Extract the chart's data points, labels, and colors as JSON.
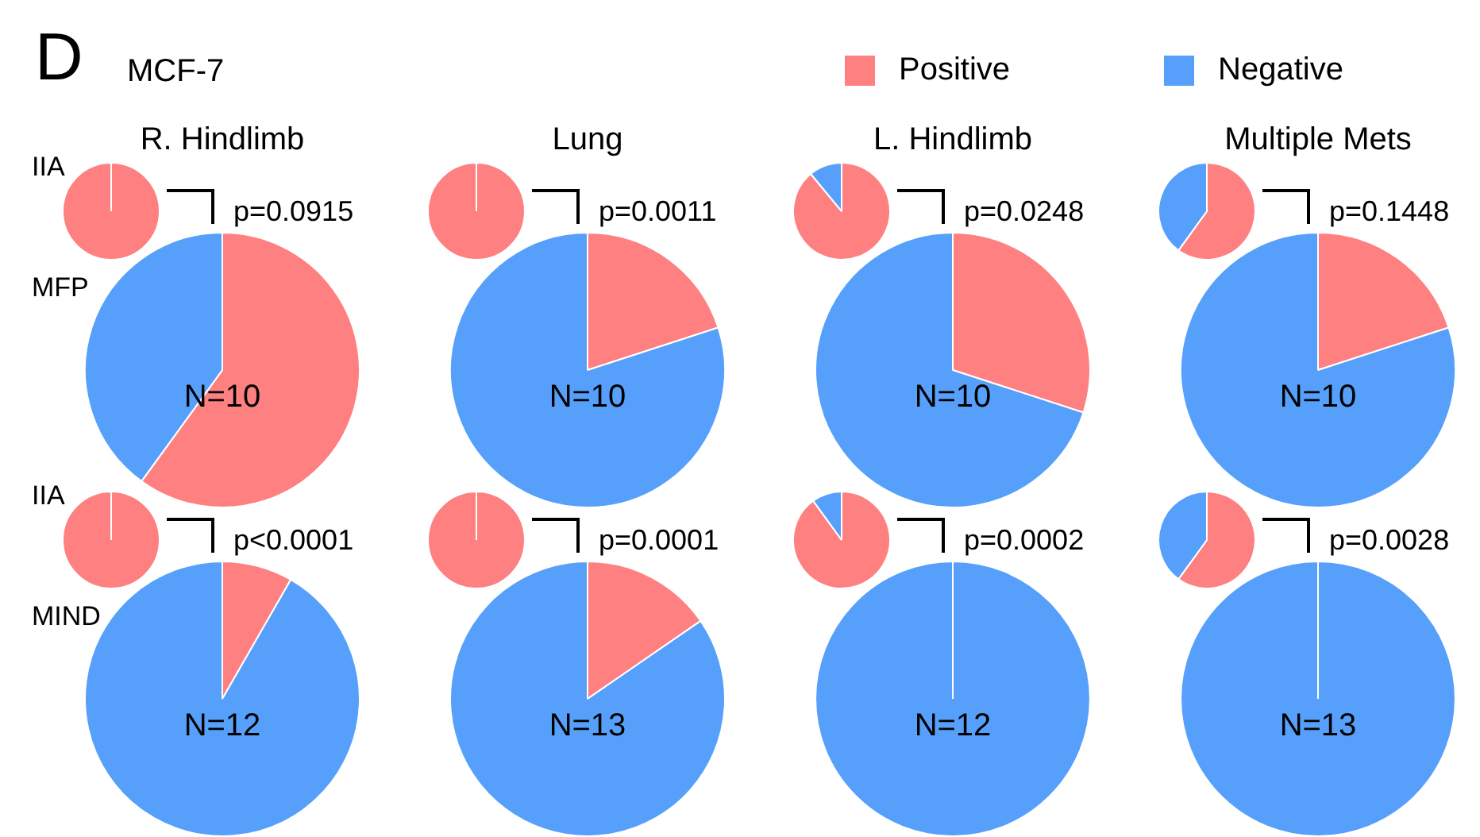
{
  "chart_data": [
    {
      "type": "pie",
      "title": "R. Hindlimb",
      "ylabel": "IIA",
      "categories": [
        "Positive",
        "Negative"
      ],
      "values": [
        100,
        0
      ],
      "colors": [
        "#fe8081",
        "#56a0fb"
      ],
      "annotations": [
        "D",
        "MCF-7",
        "p=0.0915"
      ],
      "legend": "top right"
    },
    {
      "type": "pie",
      "title": "Lung",
      "categories": [
        null,
        null
      ],
      "values": [
        100,
        0
      ],
      "colors": [
        "#fe8081",
        "#56a0fb"
      ],
      "annotations": [
        "p=0.0011"
      ]
    },
    {
      "type": "pie",
      "title": "L. Hindlimb",
      "categories": [
        null,
        null
      ],
      "values": [
        89,
        11
      ],
      "colors": [
        "#fe8081",
        "#56a0fb"
      ],
      "annotations": [
        "p=0.0248"
      ]
    },
    {
      "type": "pie",
      "title": "Multiple Mets",
      "categories": [
        null,
        null
      ],
      "values": [
        60,
        40
      ],
      "colors": [
        "#fe8081",
        "#56a0fb"
      ],
      "annotations": [
        "p=0.1448"
      ]
    },
    {
      "type": "pie",
      "ylabel": "MFP",
      "categories": [
        null,
        null
      ],
      "values": [
        60,
        40
      ],
      "colors": [
        "#fe8081",
        "#56a0fb"
      ],
      "annotations": [
        "N=10"
      ]
    },
    {
      "type": "pie",
      "categories": [
        null,
        null
      ],
      "values": [
        20,
        80
      ],
      "colors": [
        "#fe8081",
        "#56a0fb"
      ],
      "annotations": [
        "N=10"
      ]
    },
    {
      "type": "pie",
      "categories": [
        null,
        null
      ],
      "values": [
        30,
        70
      ],
      "colors": [
        "#fe8081",
        "#56a0fb"
      ],
      "annotations": [
        "N=10"
      ]
    },
    {
      "type": "pie",
      "categories": [
        null,
        null
      ],
      "values": [
        20,
        80
      ],
      "colors": [
        "#fe8081",
        "#56a0fb"
      ],
      "annotations": [
        "N=10"
      ]
    },
    {
      "type": "pie",
      "ylabel": "IIA",
      "categories": [
        null,
        null
      ],
      "values": [
        100,
        0
      ],
      "colors": [
        "#fe8081",
        "#56a0fb"
      ],
      "annotations": [
        "p<0.0001"
      ]
    },
    {
      "type": "pie",
      "categories": [
        null,
        null
      ],
      "values": [
        100,
        0
      ],
      "colors": [
        "#fe8081",
        "#56a0fb"
      ],
      "annotations": [
        "p=0.0001"
      ]
    },
    {
      "type": "pie",
      "categories": [
        null,
        null
      ],
      "values": [
        90,
        10
      ],
      "colors": [
        "#fe8081",
        "#56a0fb"
      ],
      "annotations": [
        "p=0.0002"
      ]
    },
    {
      "type": "pie",
      "categories": [
        null,
        null
      ],
      "values": [
        60,
        40
      ],
      "colors": [
        "#fe8081",
        "#56a0fb"
      ],
      "annotations": [
        "p=0.0028"
      ]
    },
    {
      "type": "pie",
      "ylabel": "MIND",
      "categories": [
        null,
        null
      ],
      "values": [
        8.3,
        91.7
      ],
      "colors": [
        "#fe8081",
        "#56a0fb"
      ],
      "annotations": [
        "N=12"
      ]
    },
    {
      "type": "pie",
      "categories": [
        null,
        null
      ],
      "values": [
        15.4,
        84.6
      ],
      "colors": [
        "#fe8081",
        "#56a0fb"
      ],
      "annotations": [
        "N=13"
      ]
    },
    {
      "type": "pie",
      "categories": [
        null,
        null
      ],
      "values": [
        0,
        100
      ],
      "colors": [
        "#fe8081",
        "#56a0fb"
      ],
      "annotations": [
        "N=12"
      ]
    },
    {
      "type": "pie",
      "categories": [
        null,
        null
      ],
      "values": [
        0,
        100
      ],
      "colors": [
        "#fe8081",
        "#56a0fb"
      ],
      "annotations": [
        "N=13"
      ]
    }
  ]
}
